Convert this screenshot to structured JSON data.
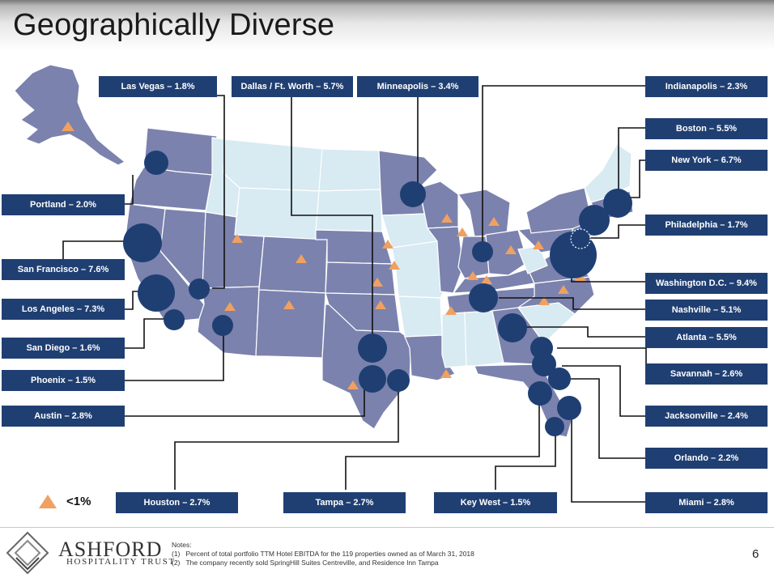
{
  "slide": {
    "title": "Geographically Diverse",
    "page_number": "6"
  },
  "markets": [
    {
      "id": "las-vegas",
      "label": "Las Vegas – 1.8%"
    },
    {
      "id": "dallas",
      "label": "Dallas / Ft. Worth – 5.7%"
    },
    {
      "id": "minneapolis",
      "label": "Minneapolis – 3.4%"
    },
    {
      "id": "indianapolis",
      "label": "Indianapolis – 2.3%"
    },
    {
      "id": "boston",
      "label": "Boston – 5.5%"
    },
    {
      "id": "new-york",
      "label": "New York – 6.7%"
    },
    {
      "id": "philadelphia",
      "label": "Philadelphia – 1.7%"
    },
    {
      "id": "washington-dc",
      "label": "Washington D.C. – 9.4%"
    },
    {
      "id": "nashville",
      "label": "Nashville – 5.1%"
    },
    {
      "id": "atlanta",
      "label": "Atlanta – 5.5%"
    },
    {
      "id": "savannah",
      "label": "Savannah – 2.6%"
    },
    {
      "id": "jacksonville",
      "label": "Jacksonville – 2.4%"
    },
    {
      "id": "orlando",
      "label": "Orlando – 2.2%"
    },
    {
      "id": "miami",
      "label": "Miami – 2.8%"
    },
    {
      "id": "key-west",
      "label": "Key West – 1.5%"
    },
    {
      "id": "tampa",
      "label": "Tampa – 2.7%"
    },
    {
      "id": "houston",
      "label": "Houston – 2.7%"
    },
    {
      "id": "austin",
      "label": "Austin – 2.8%"
    },
    {
      "id": "phoenix",
      "label": "Phoenix – 1.5%"
    },
    {
      "id": "san-diego",
      "label": "San Diego – 1.6%"
    },
    {
      "id": "los-angeles",
      "label": "Los Angeles – 7.3%"
    },
    {
      "id": "san-francisco",
      "label": "San Francisco – 7.6%"
    },
    {
      "id": "portland",
      "label": "Portland – 2.0%"
    }
  ],
  "legend": {
    "label": "<1%"
  },
  "company": {
    "name": "ASHFORD",
    "tagline": "HOSPITALITY TRUST"
  },
  "notes": {
    "heading": "Notes:",
    "items": [
      {
        "num": "(1)",
        "text": "Percent of total portfolio TTM Hotel EBITDA for the 119 properties owned as of March 31, 2018"
      },
      {
        "num": "(2)",
        "text": "The company recently sold SpringHill Suites Centreville, and Residence Inn Tampa"
      }
    ]
  },
  "colors": {
    "label_bg": "#1f3f73",
    "market_bubble": "#1f3f73",
    "state_with_hotels": "#7b82ad",
    "state_without_hotels": "#d8eaf2",
    "small_market_marker": "#f0a060"
  }
}
